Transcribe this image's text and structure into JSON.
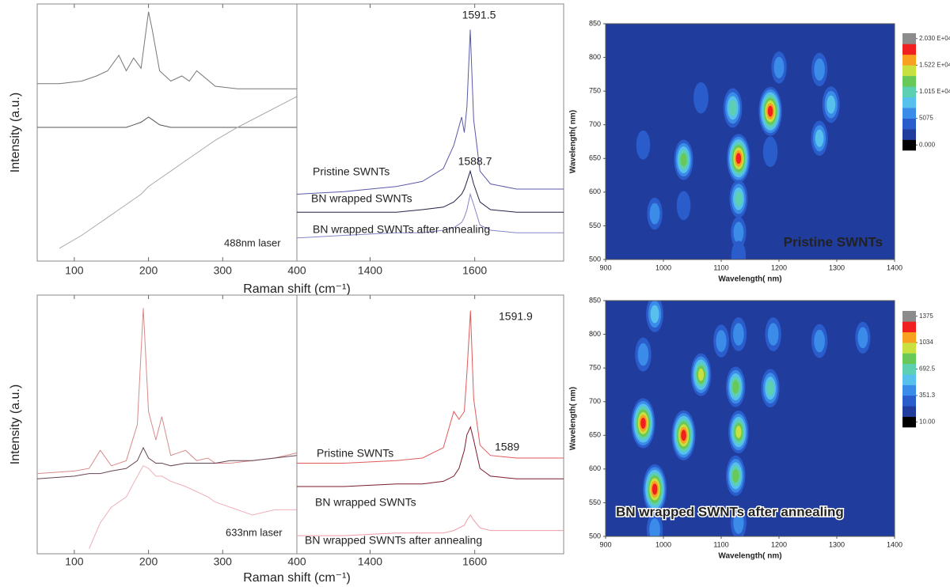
{
  "chart_data": [
    {
      "type": "raman",
      "ylabel": "Intensity (a.u.)",
      "xlabel": "Raman shift (cm⁻¹)",
      "note": "488nm laser",
      "ylim": [
        0,
        1
      ],
      "panels": [
        {
          "xlim": [
            50,
            400
          ],
          "xticks": [
            100,
            200,
            300,
            400
          ],
          "x": [
            50,
            80,
            110,
            130,
            145,
            160,
            170,
            180,
            190,
            200,
            205,
            215,
            230,
            245,
            255,
            265,
            290,
            320,
            360,
            400
          ],
          "series": [
            {
              "color": "#777777",
              "values": [
                0.69,
                0.69,
                0.7,
                0.72,
                0.74,
                0.8,
                0.74,
                0.79,
                0.75,
                0.97,
                0.9,
                0.74,
                0.7,
                0.72,
                0.7,
                0.74,
                0.68,
                0.67,
                0.67,
                0.67
              ]
            },
            {
              "color": "#555555",
              "values": [
                0.52,
                0.52,
                0.52,
                0.52,
                0.52,
                0.52,
                0.52,
                0.53,
                0.54,
                0.56,
                0.55,
                0.53,
                0.52,
                0.52,
                0.52,
                0.52,
                0.52,
                0.52,
                0.52,
                0.52
              ]
            },
            {
              "color": "#aaaaaa",
              "values": [
                null,
                0.05,
                0.1,
                0.14,
                0.17,
                0.2,
                0.22,
                0.24,
                0.26,
                0.29,
                0.3,
                0.32,
                0.35,
                0.38,
                0.4,
                0.42,
                0.47,
                0.52,
                0.58,
                0.64
              ]
            }
          ]
        },
        {
          "xlim": [
            1260,
            1770
          ],
          "xticks": [
            1400,
            1600
          ],
          "x": [
            1260,
            1350,
            1450,
            1500,
            1540,
            1560,
            1575,
            1580,
            1585,
            1591.5,
            1598,
            1610,
            1630,
            1680,
            1770
          ],
          "series": [
            {
              "name": "Pristine SWNTs",
              "color": "#5a5aa8",
              "peak": 1591.5,
              "values": [
                0.26,
                0.27,
                0.29,
                0.31,
                0.36,
                0.45,
                0.56,
                0.5,
                0.6,
                0.9,
                0.55,
                0.35,
                0.3,
                0.28,
                0.28
              ]
            },
            {
              "name": "BN wrapped SWNTs",
              "color": "#22224a",
              "peak": 1588.7,
              "values": [
                0.19,
                0.19,
                0.19,
                0.2,
                0.21,
                0.23,
                0.26,
                0.28,
                0.31,
                0.35,
                0.3,
                0.23,
                0.2,
                0.19,
                0.19
              ]
            },
            {
              "name": "BN wrapped SWNTs after annealing",
              "color": "#8585c8",
              "values": [
                0.09,
                0.1,
                0.11,
                0.11,
                0.12,
                0.13,
                0.15,
                0.17,
                0.2,
                0.26,
                0.22,
                0.14,
                0.12,
                0.11,
                0.11
              ]
            }
          ]
        }
      ]
    },
    {
      "type": "raman",
      "ylabel": "Intensity (a.u.)",
      "xlabel": "Raman shift (cm⁻¹)",
      "note": "633nm laser",
      "ylim": [
        0,
        1
      ],
      "panels": [
        {
          "xlim": [
            50,
            400
          ],
          "xticks": [
            100,
            200,
            300,
            400
          ],
          "x": [
            50,
            100,
            120,
            135,
            150,
            170,
            185,
            193,
            200,
            210,
            218,
            230,
            250,
            265,
            280,
            290,
            310,
            340,
            370,
            400
          ],
          "series": [
            {
              "color": "#d88a8a",
              "values": [
                0.31,
                0.32,
                0.33,
                0.4,
                0.34,
                0.36,
                0.5,
                0.95,
                0.55,
                0.44,
                0.53,
                0.38,
                0.4,
                0.36,
                0.37,
                0.35,
                0.35,
                0.36,
                0.37,
                0.39
              ]
            },
            {
              "color": "#664455",
              "values": [
                0.29,
                0.3,
                0.31,
                0.31,
                0.32,
                0.33,
                0.36,
                0.41,
                0.37,
                0.35,
                0.35,
                0.34,
                0.35,
                0.35,
                0.35,
                0.35,
                0.36,
                0.36,
                0.37,
                0.38
              ]
            },
            {
              "color": "#f0b0b8",
              "values": [
                null,
                null,
                0.02,
                0.12,
                0.18,
                0.22,
                0.3,
                0.34,
                0.33,
                0.3,
                0.3,
                0.28,
                0.26,
                0.24,
                0.22,
                0.2,
                0.18,
                0.15,
                0.17,
                0.17
              ]
            }
          ]
        },
        {
          "xlim": [
            1260,
            1770
          ],
          "xticks": [
            1400,
            1600
          ],
          "x": [
            1260,
            1350,
            1450,
            1500,
            1540,
            1560,
            1570,
            1580,
            1585,
            1591.9,
            1598,
            1610,
            1630,
            1680,
            1770
          ],
          "series": [
            {
              "name": "Pristine SWNTs",
              "color": "#e05a5a",
              "peak": 1591.9,
              "values": [
                0.35,
                0.35,
                0.36,
                0.37,
                0.41,
                0.55,
                0.52,
                0.55,
                0.7,
                0.94,
                0.6,
                0.42,
                0.38,
                0.37,
                0.37
              ]
            },
            {
              "name": "BN wrapped SWNTs",
              "color": "#7a1a2a",
              "peak": 1589,
              "values": [
                0.26,
                0.26,
                0.27,
                0.27,
                0.28,
                0.3,
                0.33,
                0.4,
                0.46,
                0.49,
                0.44,
                0.33,
                0.3,
                0.29,
                0.29
              ]
            },
            {
              "name": "BN wrapped SWNTs after annealing",
              "color": "#f09aa5",
              "values": [
                0.07,
                0.07,
                0.08,
                0.08,
                0.08,
                0.09,
                0.1,
                0.11,
                0.13,
                0.15,
                0.13,
                0.1,
                0.09,
                0.09,
                0.09
              ]
            }
          ]
        }
      ]
    },
    {
      "type": "contour",
      "title": "Pristine SWNTs",
      "xlabel": "Wavelength( nm)",
      "ylabel": "Wavelength( nm)",
      "xlim": [
        900,
        1400
      ],
      "xticks": [
        900,
        1000,
        1100,
        1200,
        1300,
        1400
      ],
      "ylim": [
        500,
        850
      ],
      "yticks": [
        500,
        550,
        600,
        650,
        700,
        750,
        800,
        850
      ],
      "zlim": [
        0,
        20300
      ],
      "zticks": [
        {
          "value": 0,
          "label": "0.000"
        },
        5075,
        {
          "value": 10150,
          "label": "1.015 E+04"
        },
        {
          "value": 15225,
          "label": "1.522 E+04"
        },
        {
          "value": 20300,
          "label": "2.030 E+04"
        }
      ],
      "colors": [
        "#000000",
        "#203c9c",
        "#2a5ccc",
        "#3a8ce8",
        "#58c0ec",
        "#5cd0b0",
        "#68c858",
        "#c8e040",
        "#f8a020",
        "#f02020",
        "#8c8c8c"
      ],
      "points": {
        "x": [
          1185,
          1130,
          1035,
          1120,
          1130,
          1270,
          1290,
          1270,
          1200,
          985,
          1065,
          965,
          1035,
          1130,
          1130,
          1185
        ],
        "y": [
          720,
          650,
          648,
          725,
          590,
          680,
          730,
          782,
          785,
          568,
          740,
          670,
          580,
          540,
          505,
          660
        ],
        "z": [
          17500,
          17500,
          11500,
          11000,
          10000,
          8000,
          9000,
          7000,
          6000,
          6000,
          5500,
          4000,
          4000,
          6000,
          5000,
          5000
        ]
      }
    },
    {
      "type": "contour",
      "title": "BN wrapped SWNTs after annealing",
      "xlabel": "Wavelength( nm)",
      "ylabel": "Wavelength( nm)",
      "xlim": [
        900,
        1400
      ],
      "xticks": [
        900,
        1000,
        1100,
        1200,
        1300,
        1400
      ],
      "ylim": [
        500,
        850
      ],
      "yticks": [
        500,
        550,
        600,
        650,
        700,
        750,
        800,
        850
      ],
      "zlim": [
        10,
        1375
      ],
      "zticks": [
        {
          "value": 10,
          "label": "10.00"
        },
        {
          "value": 351.3,
          "label": "351.3"
        },
        {
          "value": 692.5,
          "label": "692.5"
        },
        1034,
        1375
      ],
      "colors": [
        "#000000",
        "#203c9c",
        "#2a5ccc",
        "#3a8ce8",
        "#58c0ec",
        "#5cd0b0",
        "#68c858",
        "#c8e040",
        "#f8a020",
        "#f02020",
        "#8c8c8c"
      ],
      "points": {
        "x": [
          985,
          965,
          1035,
          1065,
          1125,
          1130,
          1125,
          1185,
          965,
          985,
          1130,
          1270,
          1345,
          1190,
          1100,
          985,
          1130
        ],
        "y": [
          570,
          668,
          650,
          740,
          722,
          655,
          590,
          720,
          770,
          830,
          800,
          790,
          795,
          800,
          790,
          510,
          520
        ],
        "z": [
          1230,
          1230,
          1230,
          900,
          800,
          900,
          800,
          700,
          500,
          600,
          500,
          500,
          400,
          500,
          450,
          500,
          450
        ]
      }
    }
  ]
}
